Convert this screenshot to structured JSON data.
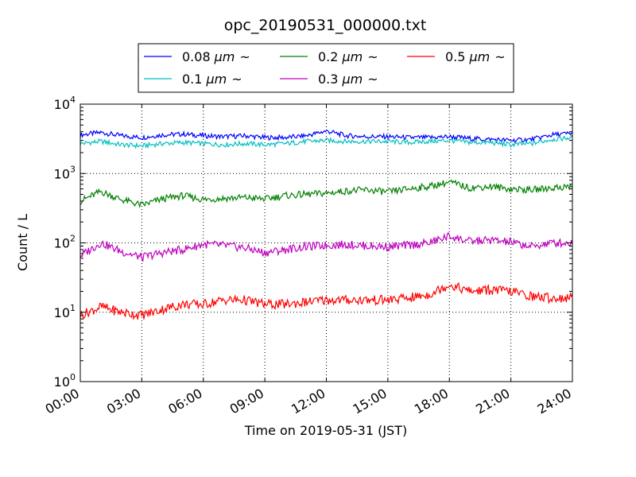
{
  "chart_data": {
    "type": "line",
    "title": "opc_20190531_000000.txt",
    "xlabel": "Time on 2019-05-31 (JST)",
    "ylabel": "Count / L",
    "yscale": "log",
    "grid": true,
    "legend_position": "top-center",
    "xlim": [
      "00:00",
      "24:00"
    ],
    "ylim": [
      1,
      10000
    ],
    "x_ticks": [
      "00:00",
      "03:00",
      "06:00",
      "09:00",
      "12:00",
      "15:00",
      "18:00",
      "21:00",
      "24:00"
    ],
    "y_ticks": [
      {
        "base": "10",
        "exp": "0"
      },
      {
        "base": "10",
        "exp": "1"
      },
      {
        "base": "10",
        "exp": "2"
      },
      {
        "base": "10",
        "exp": "3"
      },
      {
        "base": "10",
        "exp": "4"
      }
    ],
    "x": [
      "00:00",
      "01:00",
      "02:00",
      "03:00",
      "04:00",
      "05:00",
      "06:00",
      "07:00",
      "08:00",
      "09:00",
      "10:00",
      "11:00",
      "12:00",
      "13:00",
      "14:00",
      "15:00",
      "16:00",
      "17:00",
      "18:00",
      "19:00",
      "20:00",
      "21:00",
      "22:00",
      "23:00",
      "24:00"
    ],
    "series": [
      {
        "name_main": "0.08",
        "name_unit": "μm",
        "name_tail": "~",
        "color": "#0000ff",
        "values": [
          3600,
          3900,
          3500,
          3300,
          3600,
          3700,
          3500,
          3400,
          3500,
          3300,
          3300,
          3500,
          4100,
          3500,
          3400,
          3400,
          3300,
          3300,
          3400,
          3200,
          3100,
          3000,
          3100,
          3600,
          3800
        ]
      },
      {
        "name_main": "0.1",
        "name_unit": "μm",
        "name_tail": "~",
        "color": "#00bfbf",
        "values": [
          2700,
          2900,
          2600,
          2500,
          2700,
          2800,
          2700,
          2600,
          2700,
          2600,
          2700,
          2900,
          3000,
          2900,
          2900,
          2900,
          2800,
          2900,
          3000,
          2800,
          2800,
          2600,
          2700,
          3100,
          3300
        ]
      },
      {
        "name_main": "0.2",
        "name_unit": "μm",
        "name_tail": "~",
        "color": "#008000",
        "values": [
          400,
          550,
          420,
          350,
          430,
          480,
          420,
          440,
          450,
          430,
          480,
          500,
          520,
          560,
          580,
          540,
          600,
          650,
          750,
          620,
          650,
          600,
          580,
          620,
          650
        ]
      },
      {
        "name_main": "0.3",
        "name_unit": "μm",
        "name_tail": "~",
        "color": "#bf00bf",
        "values": [
          65,
          100,
          75,
          62,
          72,
          80,
          95,
          92,
          85,
          72,
          80,
          88,
          92,
          95,
          90,
          88,
          92,
          100,
          125,
          105,
          110,
          102,
          88,
          100,
          100
        ]
      },
      {
        "name_main": "0.5",
        "name_unit": "μm",
        "name_tail": "~",
        "color": "#ff0000",
        "values": [
          9,
          12,
          10,
          9,
          11,
          13,
          13,
          15,
          15,
          13,
          13,
          14,
          15,
          15,
          15,
          15,
          16,
          18,
          25,
          20,
          21,
          20,
          17,
          16,
          16
        ]
      }
    ]
  }
}
